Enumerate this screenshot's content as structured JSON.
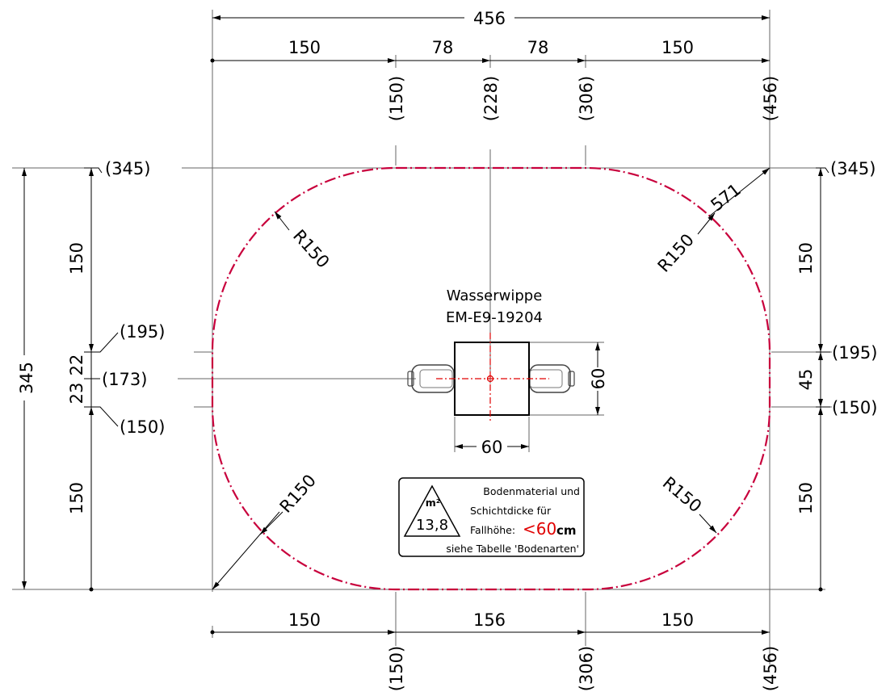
{
  "top_dims": {
    "overall": "456",
    "segments": [
      "150",
      "78",
      "78",
      "150"
    ],
    "ordinates": [
      "(150)",
      "(228)",
      "(306)",
      "(456)"
    ]
  },
  "bottom_dims": {
    "segments": [
      "150",
      "156",
      "150"
    ],
    "ordinates": [
      "(150)",
      "(306)",
      "(456)"
    ]
  },
  "left_dims": {
    "overall": "345",
    "segments": [
      "150",
      "22",
      "23",
      "150"
    ],
    "ordinates": [
      "(345)",
      "(195)",
      "(173)",
      "(150)"
    ]
  },
  "right_dims": {
    "segments": [
      "150",
      "45",
      "150"
    ],
    "ordinates": [
      "(345)",
      "(195)",
      "(150)"
    ]
  },
  "radii": [
    "R150",
    "R150",
    "R150",
    "R150"
  ],
  "diagonal": "571",
  "device": {
    "name": "Wasserwippe",
    "code": "EM-E9-19204",
    "width_dim": "60",
    "height_dim": "60"
  },
  "info_box": {
    "unit": "m²",
    "area": "13,8",
    "line1": "Bodenmaterial und",
    "line2": "Schichtdicke für",
    "line3_label": "Fallhöhe:",
    "height_value": "<60",
    "height_unit": "cm",
    "line4": "siehe Tabelle 'Bodenarten'"
  },
  "colors": {
    "boundary": "#c8003c",
    "highlight": "#e00000"
  }
}
